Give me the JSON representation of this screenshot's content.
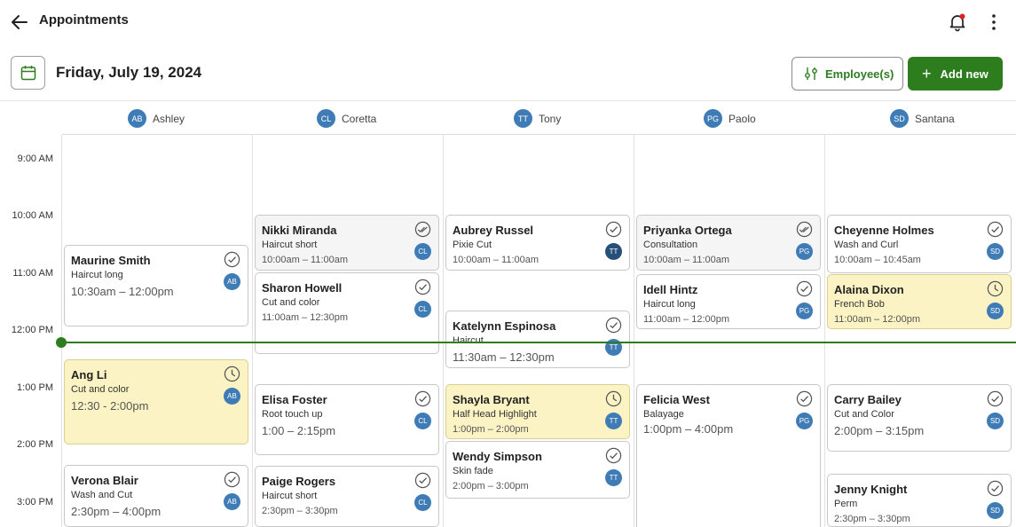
{
  "header": {
    "title": "Appointments"
  },
  "datebar": {
    "date": "Friday, July 19, 2024",
    "employees_label": "Employee(s)",
    "add_label": "Add new"
  },
  "employees": [
    {
      "initials": "AB",
      "name": "Ashley"
    },
    {
      "initials": "CL",
      "name": "Coretta"
    },
    {
      "initials": "TT",
      "name": "Tony"
    },
    {
      "initials": "PG",
      "name": "Paolo"
    },
    {
      "initials": "SD",
      "name": "Santana"
    }
  ],
  "times": [
    "9:00 AM",
    "10:00 AM",
    "11:00 AM",
    "12:00 PM",
    "1:00 PM",
    "2:00 PM",
    "3:00 PM"
  ],
  "appointments": {
    "ashley": [
      {
        "name": "Maurine Smith",
        "service": "Haircut long",
        "time": "10:30am – 12:00pm",
        "initials": "AB",
        "status": "done"
      },
      {
        "name": "Ang Li",
        "service": "Cut and color",
        "time": "12:30 - 2:00pm",
        "initials": "AB",
        "status": "pending"
      },
      {
        "name": "Verona Blair",
        "service": "Wash and Cut",
        "time": "2:30pm – 4:00pm",
        "initials": "AB",
        "status": "done"
      }
    ],
    "coretta": [
      {
        "name": "Nikki Miranda",
        "service": "Haircut short",
        "time": "10:00am – 11:00am",
        "initials": "CL",
        "status": "done-double"
      },
      {
        "name": "Sharon Howell",
        "service": "Cut and color",
        "time": "11:00am – 12:30pm",
        "initials": "CL",
        "status": "done"
      },
      {
        "name": "Elisa Foster",
        "service": "Root touch up",
        "time": "1:00 – 2:15pm",
        "initials": "CL",
        "status": "done"
      },
      {
        "name": "Paige Rogers",
        "service": "Haircut short",
        "time": "2:30pm – 3:30pm",
        "initials": "CL",
        "status": "done"
      }
    ],
    "tony": [
      {
        "name": "Aubrey Russel",
        "service": "Pixie Cut",
        "time": "10:00am – 11:00am",
        "initials": "TT",
        "status": "done"
      },
      {
        "name": "Katelynn Espinosa",
        "service": "Haircut",
        "time": "11:30am – 12:30pm",
        "initials": "TT",
        "status": "done"
      },
      {
        "name": "Shayla Bryant",
        "service": "Half Head Highlight",
        "time": "1:00pm – 2:00pm",
        "initials": "TT",
        "status": "pending"
      },
      {
        "name": "Wendy Simpson",
        "service": "Skin fade",
        "time": "2:00pm – 3:00pm",
        "initials": "TT",
        "status": "done"
      }
    ],
    "paolo": [
      {
        "name": "Priyanka Ortega",
        "service": "Consultation",
        "time": "10:00am – 11:00am",
        "initials": "PG",
        "status": "done-double"
      },
      {
        "name": "Idell Hintz",
        "service": "Haircut long",
        "time": "11:00am – 12:00pm",
        "initials": "PG",
        "status": "done"
      },
      {
        "name": "Felicia West",
        "service": "Balayage",
        "time": "1:00pm – 4:00pm",
        "initials": "PG",
        "status": "done"
      }
    ],
    "santana": [
      {
        "name": "Cheyenne Holmes",
        "service": "Wash and Curl",
        "time": "10:00am – 10:45am",
        "initials": "SD",
        "status": "done"
      },
      {
        "name": "Alaina Dixon",
        "service": "French Bob",
        "time": "11:00am – 12:00pm",
        "initials": "SD",
        "status": "pending"
      },
      {
        "name": "Carry Bailey",
        "service": "Cut and Color",
        "time": "2:00pm – 3:15pm",
        "initials": "SD",
        "status": "done"
      },
      {
        "name": "Jenny Knight",
        "service": "Perm",
        "time": "2:30pm – 3:30pm",
        "initials": "SD",
        "status": "done"
      }
    ]
  },
  "colors": {
    "accent": "#2d7d1f",
    "avatar": "#3f7cb6",
    "pending": "#fbf3c4"
  }
}
